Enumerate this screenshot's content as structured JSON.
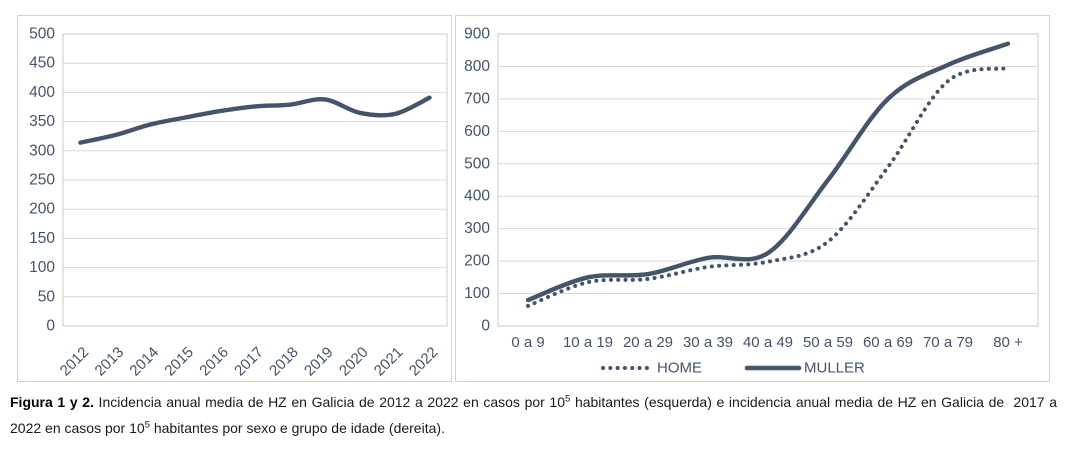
{
  "colors": {
    "series_line": "#44546A",
    "tick_text": "#44546A",
    "gridline": "#D9D9D9",
    "plot_border": "#CBCBCB",
    "axis_line": "#9E9E9E",
    "panel_border": "#BDD7EE",
    "caption_text": "#1a1a1a"
  },
  "caption": {
    "label": "Figura 1 y 2.",
    "part1": " Incidencia anual media de HZ en Galicia de 2012 a 2022 en casos por 10",
    "sup1": "5",
    "part2": " habitantes (esquerda) e incidencia anual media de HZ en Galicia de  2017 a 2022 en casos por 10",
    "sup2": "5",
    "part3": " habitantes por sexo e grupo de idade (dereita)."
  },
  "chart_data": [
    {
      "type": "line",
      "title": "",
      "xlabel": "",
      "ylabel": "",
      "categories": [
        "2012",
        "2013",
        "2014",
        "2015",
        "2016",
        "2017",
        "2018",
        "2019",
        "2020",
        "2021",
        "2022"
      ],
      "series": [
        {
          "name": "",
          "style": "solid",
          "values": [
            314,
            327,
            345,
            357,
            368,
            376,
            379,
            388,
            365,
            363,
            391
          ]
        }
      ],
      "ylim": [
        0,
        500
      ],
      "ytick_step": 50,
      "yticks": [
        0,
        50,
        100,
        150,
        200,
        250,
        300,
        350,
        400,
        450,
        500
      ],
      "grid": true,
      "legend": false,
      "x_label_rotation": -45,
      "smooth": true
    },
    {
      "type": "line",
      "title": "",
      "xlabel": "",
      "ylabel": "",
      "categories": [
        "0 a 9",
        "10 a 19",
        "20 a 29",
        "30 a 39",
        "40 a 49",
        "50 a 59",
        "60 a 69",
        "70 a 79",
        "80 +"
      ],
      "series": [
        {
          "name": "HOME",
          "style": "dotted",
          "values": [
            62,
            135,
            145,
            182,
            198,
            260,
            490,
            755,
            795
          ]
        },
        {
          "name": "MULLER",
          "style": "solid",
          "values": [
            80,
            150,
            160,
            210,
            225,
            450,
            700,
            805,
            870
          ]
        }
      ],
      "ylim": [
        0,
        900
      ],
      "ytick_step": 100,
      "yticks": [
        0,
        100,
        200,
        300,
        400,
        500,
        600,
        700,
        800,
        900
      ],
      "grid": true,
      "legend": true,
      "legend_position": "bottom",
      "x_label_rotation": 0,
      "smooth": true
    }
  ]
}
